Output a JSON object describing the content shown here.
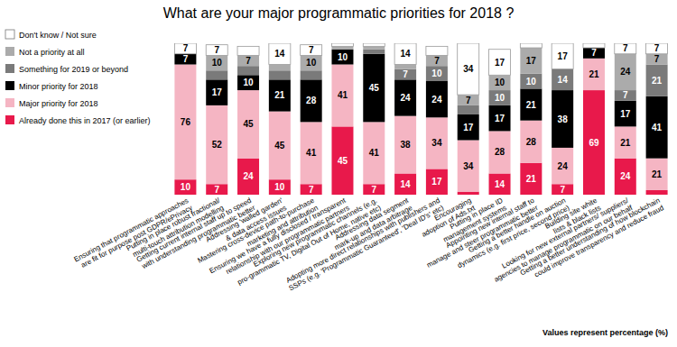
{
  "chart_data": {
    "type": "bar",
    "title": "What are your major programmatic priorities for 2018 ?",
    "annotation": "Values represent percentage (%)",
    "stacked": true,
    "data_labels": true,
    "tick_labels": false,
    "legend": "top-left",
    "ylim": [
      0,
      100
    ],
    "categories": [
      "Ensuring that programmatic approaches are fit for purpose post GDPR/ePrivacy",
      "Putting in place robust fractional/ multi-touch attribution modelling",
      "Getting current internal staff up to speed with understanding programmatic better",
      "Addressing 'walled garden' & data access issues",
      "Mastering cross-device path-to-purchase marketing and attribution",
      "Ensuring we have a fully disclosed / transparent relationship with our programmatic partners",
      "Exploring new programmatic channels (e.g. pro-grammatic TV, Digital Out of Home, native etc)",
      "Addressing data segment mark-up and data arbitrage",
      "Adopting more direct relationships with publishers and SSPs (e.g. 'Programmatic Guaranteed', 'Deal ID's' etc)",
      "Encouraging adoption of Ads.txt",
      "Putting in place ID management systems",
      "Appointing new internal staff to manage and steer programmatic better",
      "Getting a better handle on auction dynamics (e.g. first price, second price)",
      "Building site white lists & black lists",
      "Looking for new external partners/ suppliers/ agencies to manage programmatic on our behalf",
      "Getting a better understanding of how blockchain could improve transparency and reduce fraud"
    ],
    "series": [
      {
        "name": "Already done this in 2017 (or earlier)",
        "color": "#e8194b",
        "values": [
          10,
          7,
          24,
          10,
          7,
          45,
          7,
          14,
          17,
          2,
          14,
          21,
          7,
          69,
          24,
          3
        ]
      },
      {
        "name": "Major priority for 2018",
        "color": "#f5b5c3",
        "values": [
          76,
          52,
          45,
          45,
          41,
          41,
          41,
          38,
          34,
          34,
          28,
          28,
          24,
          21,
          21,
          21
        ]
      },
      {
        "name": "Minor priority for 2018",
        "color": "#000000",
        "values": [
          7,
          17,
          10,
          21,
          28,
          10,
          45,
          24,
          24,
          17,
          17,
          21,
          38,
          7,
          17,
          41
        ]
      },
      {
        "name": "Something for 2019 or beyond",
        "color": "#7a7a7a",
        "values": [
          0,
          6,
          6,
          6,
          6,
          0,
          3,
          7,
          10,
          6,
          10,
          10,
          14,
          0,
          7,
          21
        ]
      },
      {
        "name": "Not a priority at all",
        "color": "#ababab",
        "values": [
          0,
          10,
          7,
          4,
          10,
          2,
          2,
          3,
          7,
          7,
          10,
          17,
          0,
          0,
          24,
          7
        ]
      },
      {
        "name": "Don't know / Not sure",
        "color": "#ffffff",
        "values": [
          7,
          7,
          6,
          14,
          7,
          2,
          2,
          14,
          6,
          34,
          17,
          3,
          17,
          3,
          7,
          7
        ]
      }
    ]
  }
}
